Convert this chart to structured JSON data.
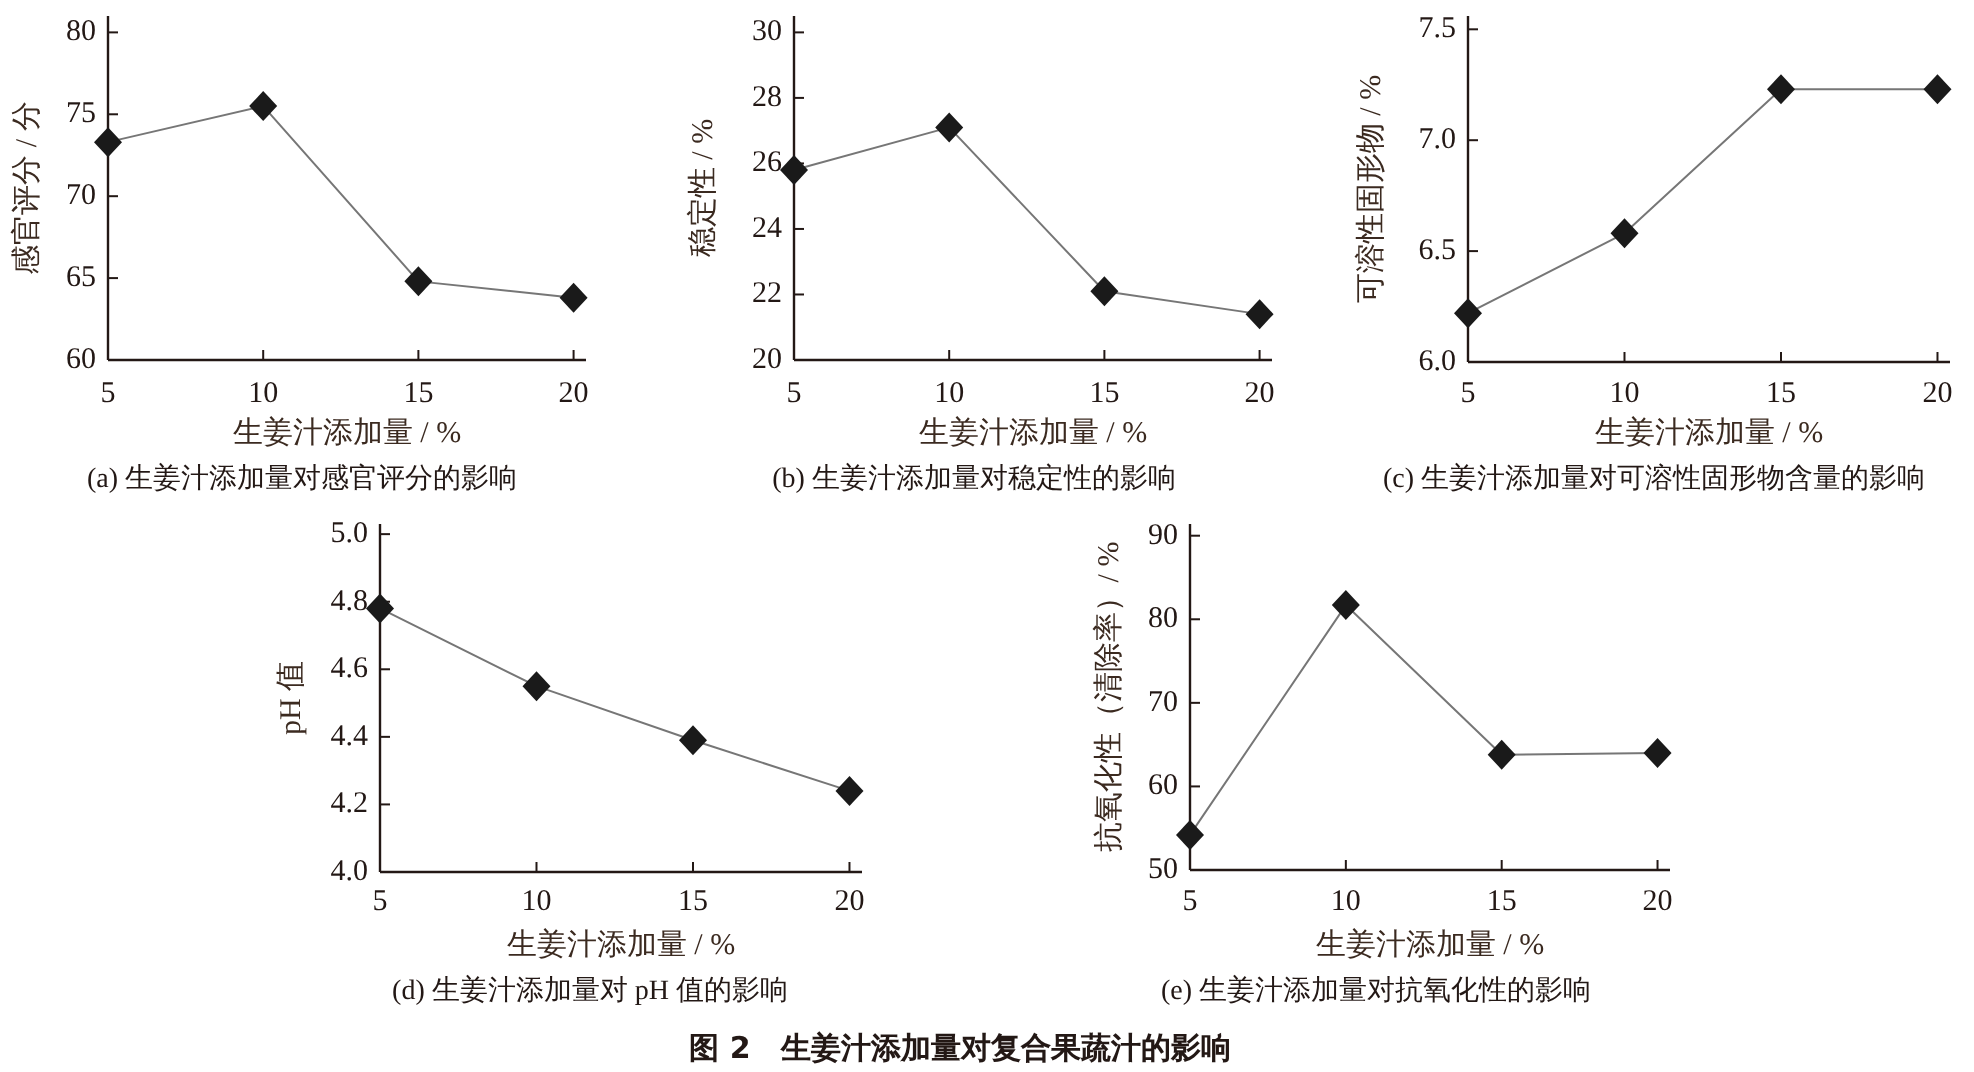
{
  "chart_data": [
    {
      "type": "line",
      "title": "(a) 生姜汁添加量对感官评分的影响",
      "xlabel": "生姜汁添加量 / %",
      "ylabel": "感官评分 / 分",
      "x": [
        5,
        10,
        15,
        20
      ],
      "series": [
        {
          "color": "#1a1a1a",
          "values": [
            73.3,
            75.5,
            64.8,
            63.8
          ]
        }
      ],
      "xlim": [
        5,
        20.4
      ],
      "ylim": [
        60,
        81
      ],
      "xticks": [
        5,
        10,
        15,
        20
      ],
      "yticks": [
        60,
        65,
        70,
        75,
        80
      ],
      "marker": "diamond"
    },
    {
      "type": "line",
      "title": "(b) 生姜汁添加量对稳定性的影响",
      "xlabel": "生姜汁添加量 / %",
      "ylabel": "稳定性 / %",
      "x": [
        5,
        10,
        15,
        20
      ],
      "series": [
        {
          "color": "#1a1a1a",
          "values": [
            25.8,
            27.1,
            22.1,
            21.4
          ]
        }
      ],
      "xlim": [
        5,
        20.4
      ],
      "ylim": [
        20,
        30.5
      ],
      "xticks": [
        5,
        10,
        15,
        20
      ],
      "yticks": [
        20,
        22,
        24,
        26,
        28,
        30
      ],
      "marker": "diamond"
    },
    {
      "type": "line",
      "title": "(c) 生姜汁添加量对可溶性固形物含量的影响",
      "xlabel": "生姜汁添加量 / %",
      "ylabel": "可溶性固形物 / %",
      "x": [
        5,
        10,
        15,
        20
      ],
      "series": [
        {
          "color": "#1a1a1a",
          "values": [
            6.22,
            6.58,
            7.23,
            7.23
          ]
        }
      ],
      "xlim": [
        5,
        20.4
      ],
      "ylim": [
        6,
        7.56
      ],
      "xticks": [
        5,
        10,
        15,
        20
      ],
      "yticks": [
        {
          "value": 6,
          "label": "6.0"
        },
        6.5,
        {
          "value": 7,
          "label": "7.0"
        },
        7.5
      ],
      "marker": "diamond"
    },
    {
      "type": "line",
      "title": "(d) 生姜汁添加量对 pH 值的影响",
      "xlabel": "生姜汁添加量 / %",
      "ylabel": "pH 值",
      "x": [
        5,
        10,
        15,
        20
      ],
      "series": [
        {
          "color": "#1a1a1a",
          "values": [
            4.78,
            4.55,
            4.39,
            4.24
          ]
        }
      ],
      "xlim": [
        5,
        20.4
      ],
      "ylim": [
        4,
        5.03
      ],
      "xticks": [
        5,
        10,
        15,
        20
      ],
      "yticks": [
        {
          "value": 4,
          "label": "4.0"
        },
        4.2,
        4.4,
        4.6,
        4.8,
        {
          "value": 5,
          "label": "5.0"
        }
      ],
      "marker": "diamond"
    },
    {
      "type": "line",
      "title": "(e) 生姜汁添加量对抗氧化性的影响",
      "xlabel": "生姜汁添加量 / %",
      "ylabel": "抗氧化性（清除率）/ %",
      "x": [
        5,
        10,
        15,
        20
      ],
      "series": [
        {
          "color": "#1a1a1a",
          "values": [
            54.2,
            81.7,
            63.8,
            64.0
          ]
        }
      ],
      "xlim": [
        5,
        20.4
      ],
      "ylim": [
        50,
        91.4
      ],
      "xticks": [
        5,
        10,
        15,
        20
      ],
      "yticks": [
        50,
        60,
        70,
        80,
        90
      ],
      "marker": "diamond"
    },
    {
      "type": "other",
      "title": "图 2　生姜汁添加量对复合果蔬汁的影响"
    }
  ]
}
